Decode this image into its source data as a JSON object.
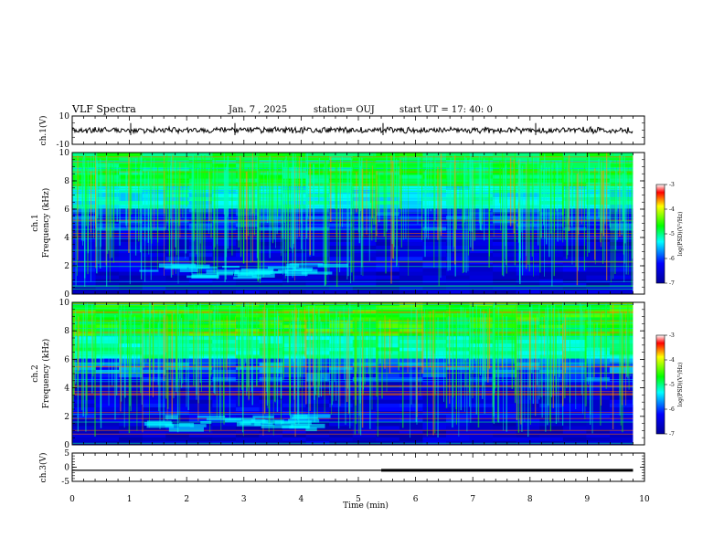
{
  "header": {
    "title": "VLF Spectra",
    "date": "Jan. 7 , 2025",
    "station": "station= OUJ",
    "start": "start UT =  17: 40: 0"
  },
  "chart_data": [
    {
      "type": "line",
      "name": "ch1-waveform",
      "ylabel": "ch.1(V)",
      "ylim": [
        -10,
        10
      ],
      "y_ticks": [
        "10",
        "-10"
      ],
      "x_range_min": [
        0,
        9.8
      ],
      "approx_level": 0,
      "approx_amplitude": 2.5
    },
    {
      "type": "heatmap",
      "name": "ch1-spectrogram",
      "ylabel": "ch.1\nFrequency (kHz)",
      "ylim": [
        0,
        10
      ],
      "y_ticks": [
        "0",
        "2",
        "4",
        "6",
        "8",
        "10"
      ],
      "x_range_min": [
        0,
        9.8
      ],
      "colorbar": {
        "label": "log(PSD)(V²/Hz)",
        "range": [
          -7,
          -3
        ],
        "ticks": [
          "-3",
          "-4",
          "-5",
          "-6",
          "-7"
        ]
      }
    },
    {
      "type": "heatmap",
      "name": "ch2-spectrogram",
      "ylabel": "ch.2\nFrequency (kHz)",
      "ylim": [
        0,
        10
      ],
      "y_ticks": [
        "0",
        "2",
        "4",
        "6",
        "8",
        "10"
      ],
      "x_range_min": [
        0,
        9.8
      ],
      "colorbar": {
        "label": "log(PSD)(V²/Hz)",
        "range": [
          -7,
          -3
        ],
        "ticks": [
          "-3",
          "-4",
          "-5",
          "-6",
          "-7"
        ]
      }
    },
    {
      "type": "line",
      "name": "ch3-waveform",
      "ylabel": "ch.3(V)",
      "ylim": [
        -5,
        5
      ],
      "y_ticks": [
        "5",
        "0",
        "-5"
      ],
      "x_range_min": [
        0,
        9.8
      ],
      "segments": [
        {
          "x": [
            0,
            5.4
          ],
          "y": -1.1
        },
        {
          "x": [
            5.4,
            9.8
          ],
          "y": -1.1,
          "thick": true
        }
      ]
    }
  ],
  "xaxis": {
    "label": "Time (min)",
    "range": [
      0,
      10
    ],
    "ticks": [
      "0",
      "1",
      "2",
      "3",
      "4",
      "5",
      "6",
      "7",
      "8",
      "9",
      "10"
    ]
  },
  "colors": {
    "colormap": [
      "#00009a",
      "#0000ff",
      "#00ffff",
      "#00ff00",
      "#ffff00",
      "#ff0000"
    ],
    "trace": "#000000"
  }
}
